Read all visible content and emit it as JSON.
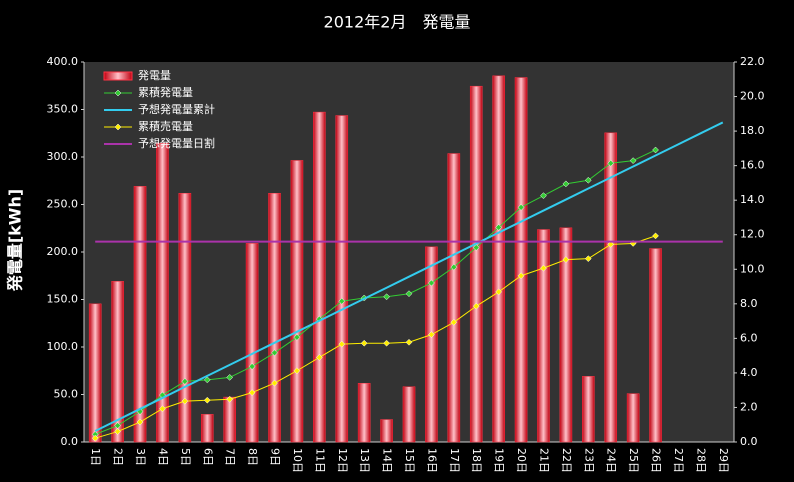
{
  "chart_data": {
    "type": "combo",
    "title": "2012年2月　発電量",
    "y_label": "発電量[kWh]",
    "categories": [
      "1日",
      "2日",
      "3日",
      "4日",
      "5日",
      "6日",
      "7日",
      "8日",
      "9日",
      "10日",
      "11日",
      "12日",
      "13日",
      "14日",
      "15日",
      "16日",
      "17日",
      "18日",
      "19日",
      "20日",
      "21日",
      "22日",
      "23日",
      "24日",
      "25日",
      "26日",
      "27日",
      "28日",
      "29日"
    ],
    "ylim": [
      0,
      400
    ],
    "yticks": [
      {
        "value": 0,
        "label": "0.0"
      },
      {
        "value": 50,
        "label": "50.0"
      },
      {
        "value": 100,
        "label": "100.0"
      },
      {
        "value": 150,
        "label": "150.0"
      },
      {
        "value": 200,
        "label": "200.0"
      },
      {
        "value": 250,
        "label": "250.0"
      },
      {
        "value": 300,
        "label": "300.0"
      },
      {
        "value": 350,
        "label": "350.0"
      },
      {
        "value": 400,
        "label": "400.0"
      }
    ],
    "y2lim": [
      0,
      22
    ],
    "y2ticks": [
      {
        "value": 0,
        "label": "0.0"
      },
      {
        "value": 2,
        "label": "2.0"
      },
      {
        "value": 4,
        "label": "4.0"
      },
      {
        "value": 6,
        "label": "6.0"
      },
      {
        "value": 8,
        "label": "8.0"
      },
      {
        "value": 10,
        "label": "10.0"
      },
      {
        "value": 12,
        "label": "12.0"
      },
      {
        "value": 14,
        "label": "14.0"
      },
      {
        "value": 16,
        "label": "16.0"
      },
      {
        "value": 18,
        "label": "18.0"
      },
      {
        "value": 20,
        "label": "20.0"
      },
      {
        "value": 22,
        "label": "22.0"
      }
    ],
    "legend": "upper left",
    "series": [
      {
        "name": "発電量",
        "type": "bar",
        "axis": "y2",
        "color": "#ff3344",
        "values": [
          8.0,
          9.3,
          14.8,
          17.3,
          14.4,
          1.6,
          2.6,
          11.5,
          14.4,
          16.3,
          19.1,
          18.9,
          3.4,
          1.3,
          3.2,
          11.3,
          16.7,
          20.6,
          21.2,
          21.1,
          12.3,
          12.4,
          3.8,
          17.9,
          2.8,
          11.2,
          null,
          null,
          null
        ]
      },
      {
        "name": "累積発電量",
        "type": "line",
        "marker": true,
        "color": "#33cc33",
        "values": [
          8,
          17.3,
          32.1,
          49.4,
          63.8,
          65.4,
          68,
          79.5,
          93.9,
          110.2,
          129.3,
          148.2,
          151.6,
          152.9,
          156.1,
          167.4,
          184.1,
          204.7,
          225.9,
          247,
          259.3,
          271.7,
          275.5,
          293.4,
          296.2,
          307.4,
          null,
          null,
          null
        ]
      },
      {
        "name": "予想発電量累計",
        "type": "line",
        "marker": false,
        "color": "#33ccee",
        "values": [
          11.6,
          23.2,
          34.8,
          46.4,
          58,
          69.6,
          81.2,
          92.8,
          104.4,
          116,
          127.6,
          139.2,
          150.8,
          162.4,
          174,
          185.6,
          197.2,
          208.8,
          220.4,
          232,
          243.6,
          255.2,
          266.8,
          278.4,
          290,
          301.6,
          313.2,
          324.8,
          336.4
        ]
      },
      {
        "name": "累積売電量",
        "type": "line",
        "marker": true,
        "color": "#ffee00",
        "values": [
          4,
          11,
          21,
          35,
          43,
          44,
          45,
          52,
          62,
          75,
          89,
          103,
          104,
          104,
          105,
          113,
          126,
          143,
          158,
          175,
          183,
          192,
          193,
          208,
          209,
          217,
          null,
          null,
          null
        ]
      },
      {
        "name": "予想発電量日割",
        "type": "line",
        "marker": false,
        "axis": "y2",
        "color": "#aa33aa",
        "values": [
          11.6,
          11.6,
          11.6,
          11.6,
          11.6,
          11.6,
          11.6,
          11.6,
          11.6,
          11.6,
          11.6,
          11.6,
          11.6,
          11.6,
          11.6,
          11.6,
          11.6,
          11.6,
          11.6,
          11.6,
          11.6,
          11.6,
          11.6,
          11.6,
          11.6,
          11.6,
          11.6,
          11.6,
          11.6
        ]
      }
    ]
  }
}
